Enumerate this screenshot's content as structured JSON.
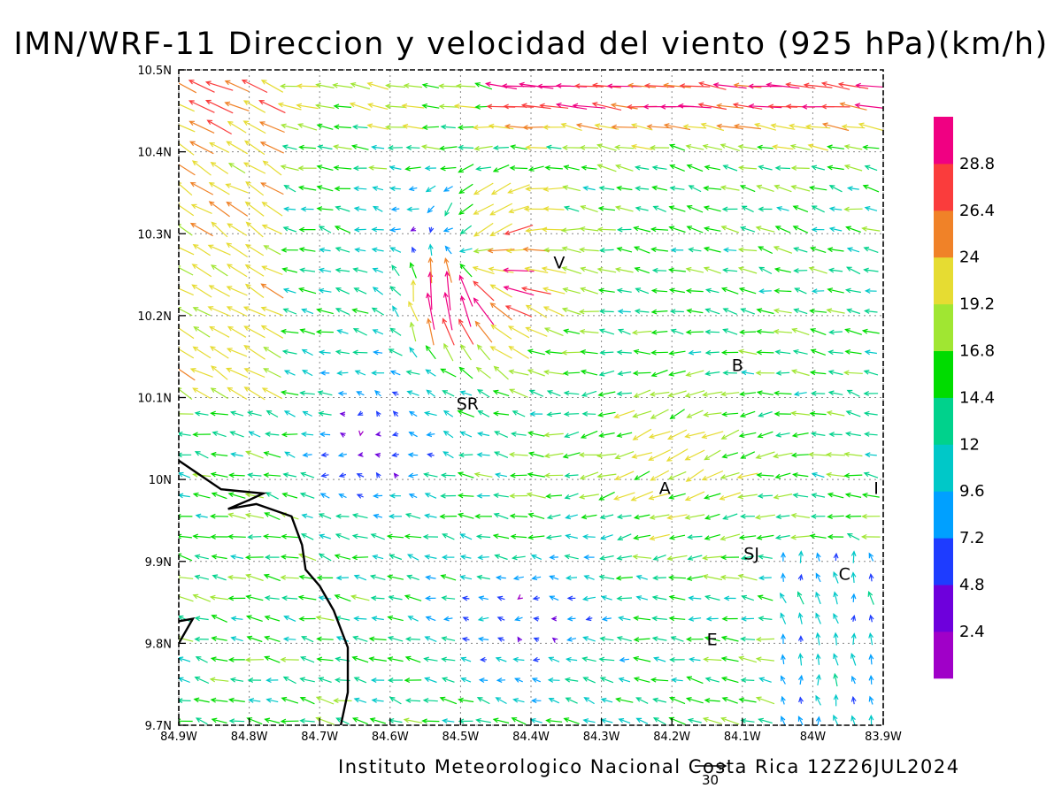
{
  "title": "IMN/WRF-11 Direccion y velocidad del viento (925 hPa)(km/h)",
  "footer": "Instituto Meteorologico Nacional Costa Rica 12Z26JUL2024",
  "map": {
    "lon_range": [
      -84.9,
      -83.9
    ],
    "lat_range": [
      9.7,
      10.5
    ],
    "lon_ticks": [
      {
        "value": -84.9,
        "label": "84.9W"
      },
      {
        "value": -84.8,
        "label": "84.8W"
      },
      {
        "value": -84.7,
        "label": "84.7W"
      },
      {
        "value": -84.6,
        "label": "84.6W"
      },
      {
        "value": -84.5,
        "label": "84.5W"
      },
      {
        "value": -84.4,
        "label": "84.4W"
      },
      {
        "value": -84.3,
        "label": "84.3W"
      },
      {
        "value": -84.2,
        "label": "84.2W"
      },
      {
        "value": -84.1,
        "label": "84.1W"
      },
      {
        "value": -84.0,
        "label": "84W"
      },
      {
        "value": -83.9,
        "label": "83.9W"
      }
    ],
    "lat_ticks": [
      {
        "value": 9.7,
        "label": "9.7N"
      },
      {
        "value": 9.8,
        "label": "9.8N"
      },
      {
        "value": 9.9,
        "label": "9.9N"
      },
      {
        "value": 10.0,
        "label": "10N"
      },
      {
        "value": 10.1,
        "label": "10.1N"
      },
      {
        "value": 10.2,
        "label": "10.2N"
      },
      {
        "value": 10.3,
        "label": "10.3N"
      },
      {
        "value": 10.4,
        "label": "10.4N"
      },
      {
        "value": 10.5,
        "label": "10.5N"
      }
    ],
    "cities": [
      {
        "name": "V",
        "lon": -84.36,
        "lat": 10.265
      },
      {
        "name": "B",
        "lon": -84.107,
        "lat": 10.14
      },
      {
        "name": "SR",
        "lon": -84.49,
        "lat": 10.093
      },
      {
        "name": "A",
        "lon": -84.21,
        "lat": 9.99
      },
      {
        "name": "I",
        "lon": -83.91,
        "lat": 9.99
      },
      {
        "name": "SJ",
        "lon": -84.087,
        "lat": 9.91
      },
      {
        "name": "C",
        "lon": -83.955,
        "lat": 9.885
      },
      {
        "name": "E",
        "lon": -84.143,
        "lat": 9.805
      }
    ],
    "coastline_label": "coastline",
    "colors": {
      "frame": "#000000",
      "grid": "#888888",
      "coast": "#000000"
    }
  },
  "colorbar": {
    "levels": [
      "2.4",
      "4.8",
      "7.2",
      "9.6",
      "12",
      "14.4",
      "16.8",
      "19.2",
      "24",
      "26.4",
      "28.8"
    ],
    "colors": [
      "#a000c8",
      "#6e00dc",
      "#1e3cff",
      "#00a0ff",
      "#00c8c8",
      "#00d28c",
      "#00dc00",
      "#a0e632",
      "#e6dc32",
      "#f08228",
      "#fa3c3c",
      "#f00082"
    ]
  },
  "reference_vector": {
    "label": "30"
  },
  "chart_data": {
    "type": "vector-field",
    "variable": "wind direction and speed at 925 hPa",
    "units": "km/h",
    "grid_spacing_deg": 0.025,
    "speed_range_kmh": [
      0,
      31
    ],
    "dominant_flow": "east-to-west (easterly trade winds) with convergence near 84.5W 10.2N",
    "strongest_winds": [
      {
        "lon": -84.52,
        "lat": 10.25,
        "speed_kmh": 28.8,
        "direction": "from south"
      },
      {
        "lon": -84.45,
        "lat": 10.24,
        "speed_kmh": 26.4,
        "direction": "from east-southeast"
      }
    ]
  }
}
